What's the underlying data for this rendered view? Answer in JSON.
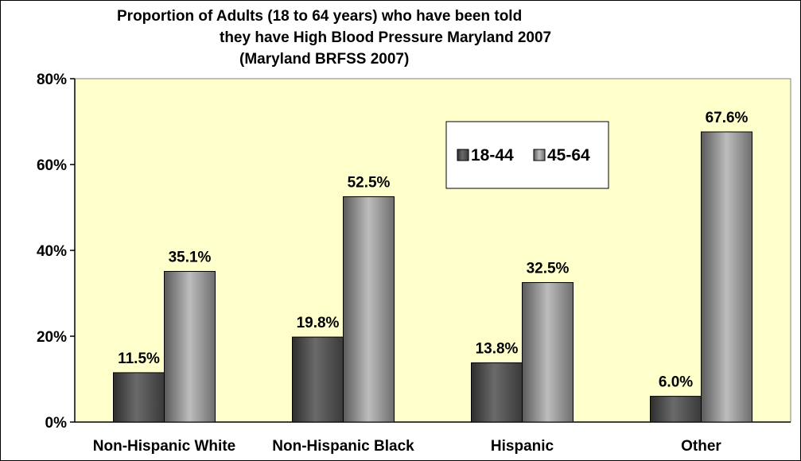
{
  "chart_data": {
    "type": "bar",
    "title_lines": [
      "Proportion of Adults (18 to 64 years) who have been told",
      "they have High Blood Pressure  Maryland 2007",
      "(Maryland BRFSS 2007)"
    ],
    "categories": [
      "Non-Hispanic White",
      "Non-Hispanic Black",
      "Hispanic",
      "Other"
    ],
    "series": [
      {
        "name": "18-44",
        "values": [
          11.5,
          19.8,
          13.8,
          6.0
        ],
        "labels": [
          "11.5%",
          "19.8%",
          "13.8%",
          "6.0%"
        ]
      },
      {
        "name": "45-64",
        "values": [
          35.1,
          52.5,
          32.5,
          67.6
        ],
        "labels": [
          "35.1%",
          "52.5%",
          "32.5%",
          "67.6%"
        ]
      }
    ],
    "y_ticks": [
      0,
      20,
      40,
      60,
      80
    ],
    "y_tick_labels": [
      "0%",
      "20%",
      "40%",
      "60%",
      "80%"
    ],
    "ylim": [
      0,
      80
    ],
    "grid": false,
    "legend_position": "top-right",
    "colors": {
      "plot_background": "#FFFFCC",
      "series_18_44": "#4D4D4D",
      "series_45_64": "#8C8C8C"
    }
  }
}
